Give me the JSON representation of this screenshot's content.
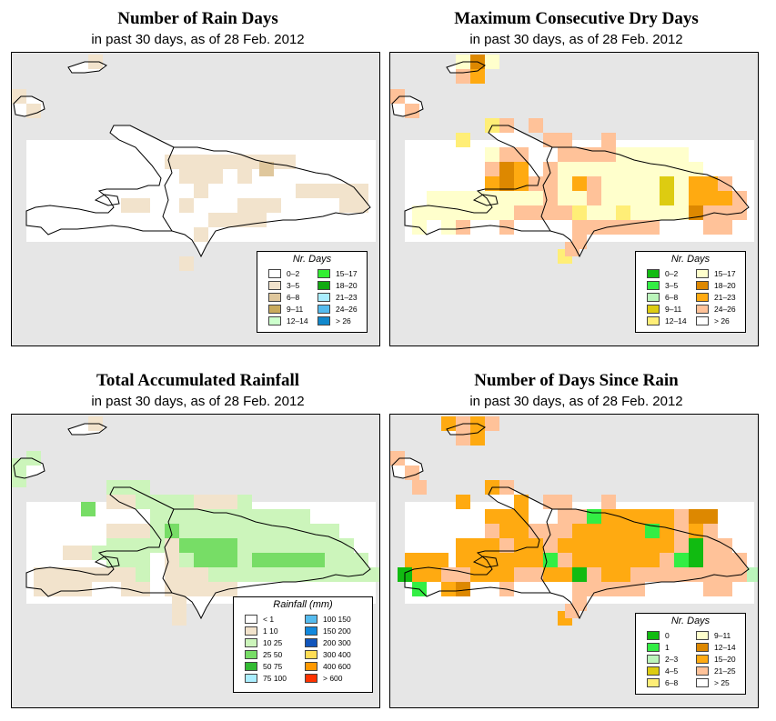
{
  "panels": [
    {
      "id": "rain_days",
      "title": "Number of Rain Days",
      "subtitle": "in past 30 days, as of  28 Feb. 2012",
      "legend_title": "Nr. Days",
      "legend": [
        {
          "label": "0–2",
          "color": "#ffffff"
        },
        {
          "label": "3–5",
          "color": "#f2e3cc"
        },
        {
          "label": "6–8",
          "color": "#dfc79c"
        },
        {
          "label": "9–11",
          "color": "#c9aa5c"
        },
        {
          "label": "12–14",
          "color": "#ccffcc"
        },
        {
          "label": "15–17",
          "color": "#33ee33"
        },
        {
          "label": "18–20",
          "color": "#11aa11"
        },
        {
          "label": "21–23",
          "color": "#aaeeff"
        },
        {
          "label": "24–26",
          "color": "#55bbee"
        },
        {
          "label": "> 26",
          "color": "#1188cc"
        }
      ]
    },
    {
      "id": "max_dry_days",
      "title": "Maximum Consecutive Dry Days",
      "subtitle": "in past 30 days, as of  28 Feb. 2012",
      "legend_title": "Nr. Days",
      "legend": [
        {
          "label": "0–2",
          "color": "#11bb11"
        },
        {
          "label": "3–5",
          "color": "#33ee44"
        },
        {
          "label": "6–8",
          "color": "#bbf5bb"
        },
        {
          "label": "9–11",
          "color": "#ddcc11"
        },
        {
          "label": "12–14",
          "color": "#ffee77"
        },
        {
          "label": "15–17",
          "color": "#ffffcc"
        },
        {
          "label": "18–20",
          "color": "#dd8800"
        },
        {
          "label": "21–23",
          "color": "#ffaa11"
        },
        {
          "label": "24–26",
          "color": "#ffc299"
        },
        {
          "label": "> 26",
          "color": "#ffffff"
        }
      ]
    },
    {
      "id": "total_rainfall",
      "title": "Total Accumulated Rainfall",
      "subtitle": "in past 30 days, as of  28 Feb. 2012",
      "legend_title": "Rainfall (mm)",
      "legend": [
        {
          "label": "< 1",
          "color": "#ffffff"
        },
        {
          "label": "1    10",
          "color": "#f2e3cc"
        },
        {
          "label": "10    25",
          "color": "#ccf5bb"
        },
        {
          "label": "25    50",
          "color": "#77dd66"
        },
        {
          "label": "50    75",
          "color": "#33bb33"
        },
        {
          "label": "75   100",
          "color": "#aaeeff"
        },
        {
          "label": "100   150",
          "color": "#55bbee"
        },
        {
          "label": "150   200",
          "color": "#1188dd"
        },
        {
          "label": "200   300",
          "color": "#1155bb"
        },
        {
          "label": "300   400",
          "color": "#ffdd55"
        },
        {
          "label": "400   600",
          "color": "#ff9900"
        },
        {
          "label": "> 600",
          "color": "#ff3300"
        }
      ]
    },
    {
      "id": "days_since_rain",
      "title": "Number of Days Since Rain",
      "subtitle": "in past 30 days, as of  28 Feb. 2012",
      "legend_title": "Nr. Days",
      "legend": [
        {
          "label": "0",
          "color": "#11bb11"
        },
        {
          "label": "1",
          "color": "#33ee44"
        },
        {
          "label": "2–3",
          "color": "#bbf5bb"
        },
        {
          "label": "4–5",
          "color": "#ddcc11"
        },
        {
          "label": "6–8",
          "color": "#ffee77"
        },
        {
          "label": "9–11",
          "color": "#ffffcc"
        },
        {
          "label": "12–14",
          "color": "#dd8800"
        },
        {
          "label": "15–20",
          "color": "#ffaa11"
        },
        {
          "label": "21–25",
          "color": "#ffc299"
        },
        {
          "label": "> 25",
          "color": "#ffffff"
        }
      ]
    }
  ]
}
